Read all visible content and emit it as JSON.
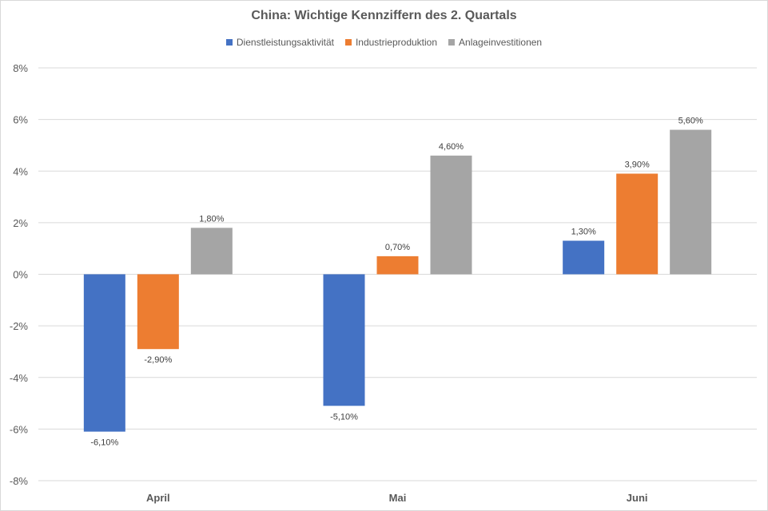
{
  "chart_data": {
    "type": "bar",
    "title": "China: Wichtige Kennziffern des 2. Quartals",
    "categories": [
      "April",
      "Mai",
      "Juni"
    ],
    "series": [
      {
        "name": "Dienstleistungsaktivität",
        "color": "#4472c4",
        "values": [
          -6.1,
          -5.1,
          1.3
        ],
        "labels": [
          "-6,10%",
          "-5,10%",
          "1,30%"
        ]
      },
      {
        "name": "Industrieproduktion",
        "color": "#ed7d31",
        "values": [
          -2.9,
          0.7,
          3.9
        ],
        "labels": [
          "-2,90%",
          "0,70%",
          "3,90%"
        ]
      },
      {
        "name": "Anlageinvestitionen",
        "color": "#a5a5a5",
        "values": [
          1.8,
          4.6,
          5.6
        ],
        "labels": [
          "1,80%",
          "4,60%",
          "5,60%"
        ]
      }
    ],
    "ylim": [
      -8,
      8
    ],
    "yticks": [
      8,
      6,
      4,
      2,
      0,
      -2,
      -4,
      -6,
      -8
    ],
    "ytick_labels": [
      "8%",
      "6%",
      "4%",
      "2%",
      "0%",
      "-2%",
      "-4%",
      "-6%",
      "-8%"
    ],
    "grid": true,
    "legend_position": "top"
  }
}
